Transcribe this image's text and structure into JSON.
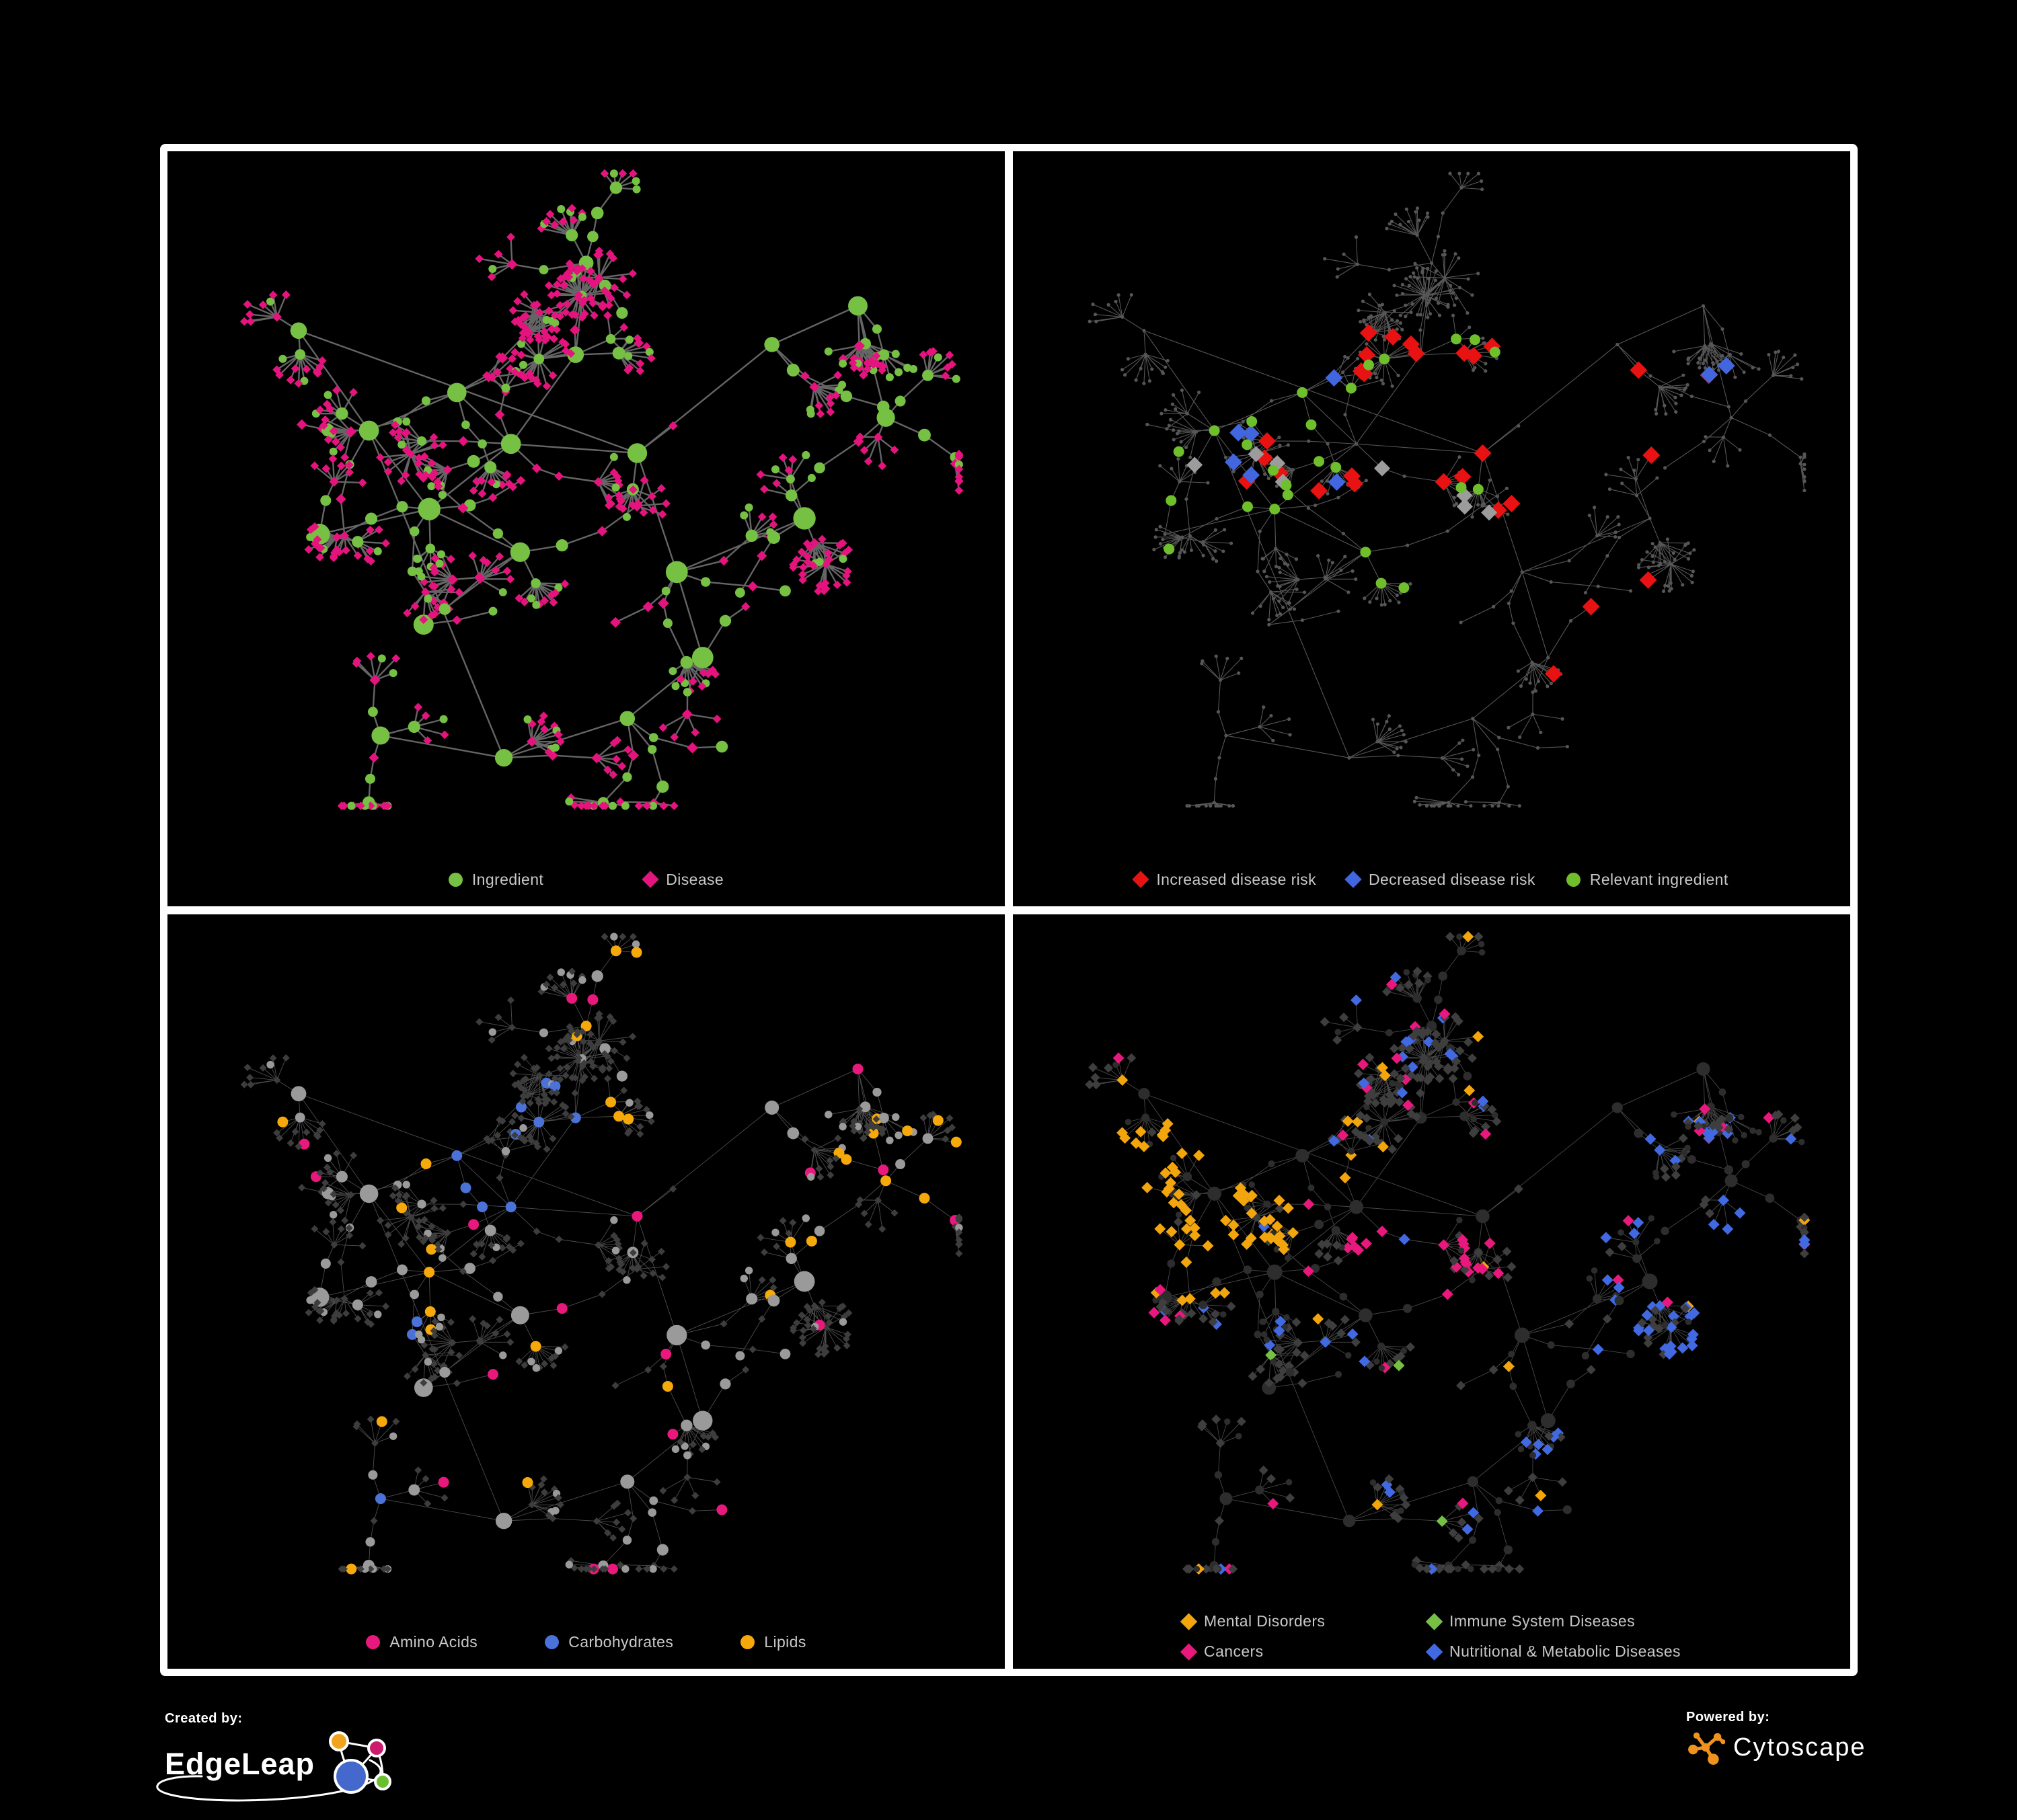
{
  "branding": {
    "created_by_label": "Created by:",
    "created_by_name": "EdgeLeap",
    "powered_by_label": "Powered by:",
    "powered_by_name": "Cytoscape",
    "cytoscape_orange": "#f0921e",
    "logo_colors": {
      "blue": "#4468cb",
      "orange": "#f0a41e",
      "pink": "#cc1a6e",
      "green": "#6abf2e"
    }
  },
  "panels": [
    {
      "name": "ingredient-disease",
      "legend": [
        {
          "label": "Ingredient",
          "shape": "circle",
          "color": "#76c043"
        },
        {
          "label": "Disease",
          "shape": "diamond",
          "color": "#e5137d"
        }
      ]
    },
    {
      "name": "disease-risk",
      "legend": [
        {
          "label": "Increased disease risk",
          "shape": "diamond",
          "color": "#e81212"
        },
        {
          "label": "Decreased disease risk",
          "shape": "diamond",
          "color": "#4166e0"
        },
        {
          "label": "Relevant ingredient",
          "shape": "circle",
          "color": "#6fbf2c"
        }
      ]
    },
    {
      "name": "nutrient-classes",
      "legend": [
        {
          "label": "Amino Acids",
          "shape": "circle",
          "color": "#e8187d"
        },
        {
          "label": "Carbohydrates",
          "shape": "circle",
          "color": "#4a72d8"
        },
        {
          "label": "Lipids",
          "shape": "circle",
          "color": "#f6a90b"
        }
      ]
    },
    {
      "name": "disease-categories",
      "legend": [
        {
          "label": "Mental Disorders",
          "shape": "diamond",
          "color": "#f2a50c"
        },
        {
          "label": "Immune System Diseases",
          "shape": "diamond",
          "color": "#76c043"
        },
        {
          "label": "Cancers",
          "shape": "diamond",
          "color": "#e8187d"
        },
        {
          "label": "Nutritional & Metabolic Diseases",
          "shape": "diamond",
          "color": "#4169e1"
        }
      ]
    }
  ],
  "chart_data": {
    "type": "network",
    "note": "One ingredient-disease association network rendered four times with different color mappings; positions procedurally approximated from the figure.",
    "layout": {
      "seed": 11,
      "hubs": [
        [
          0.22,
          0.4
        ],
        [
          0.33,
          0.33
        ],
        [
          0.42,
          0.42
        ],
        [
          0.3,
          0.52
        ],
        [
          0.16,
          0.55
        ],
        [
          0.5,
          0.3
        ],
        [
          0.57,
          0.44
        ],
        [
          0.43,
          0.58
        ],
        [
          0.62,
          0.6
        ],
        [
          0.28,
          0.7
        ],
        [
          0.66,
          0.76
        ],
        [
          0.72,
          0.28
        ],
        [
          0.84,
          0.22
        ],
        [
          0.55,
          0.82
        ],
        [
          0.38,
          0.88
        ],
        [
          0.8,
          0.55
        ],
        [
          0.13,
          0.25
        ],
        [
          0.5,
          0.14
        ],
        [
          0.88,
          0.4
        ],
        [
          0.23,
          0.84
        ]
      ],
      "branches_min": 2,
      "branches_max": 4,
      "dandelions": 6,
      "leaf_circle_p": 0.2
    },
    "panel_styles": [
      {
        "style": "types",
        "edge": {
          "color": "#6e6e6e",
          "width": 2.4,
          "opacity": 0.92
        },
        "circle_color": "#76c043",
        "diamond_color": "#e5137d"
      },
      {
        "style": "base_highlight",
        "seed": 21,
        "edge": {
          "color": "#6f6f6f",
          "width": 1.1,
          "opacity": 0.78
        },
        "base_color": "#565656",
        "base_r": 2.6,
        "highlights": [
          {
            "shape": "diamond",
            "color": "#e81212",
            "half": 13,
            "picks": [
              [
                0.25,
                0.25,
                0.62,
                0.55,
                22
              ],
              [
                0.62,
                0.28,
                0.86,
                0.45,
                3
              ],
              [
                0.55,
                0.6,
                0.78,
                0.8,
                3
              ]
            ]
          },
          {
            "shape": "diamond",
            "color": "#4166e0",
            "half": 13,
            "picks": [
              [
                0.2,
                0.3,
                0.38,
                0.52,
                6
              ],
              [
                0.8,
                0.18,
                0.95,
                0.32,
                2
              ]
            ]
          },
          {
            "shape": "diamond",
            "color": "#9c9c9c",
            "half": 12,
            "picks": [
              [
                0.3,
                0.3,
                0.65,
                0.6,
                6
              ],
              [
                0.18,
                0.42,
                0.3,
                0.62,
                2
              ]
            ]
          },
          {
            "shape": "circle",
            "color": "#6fbf2c",
            "r": 8,
            "picks": [
              [
                0.2,
                0.25,
                0.65,
                0.55,
                20
              ],
              [
                0.08,
                0.28,
                0.2,
                0.7,
                3
              ],
              [
                0.4,
                0.58,
                0.72,
                0.85,
                3
              ]
            ]
          }
        ]
      },
      {
        "style": "nutrients",
        "seed": 33,
        "edge": {
          "color": "#9a9a9a",
          "width": 0.9,
          "opacity": 0.5
        },
        "diamond_color": "#3d3d3d",
        "diamond_half": 5.5,
        "circle_color": "#9a9a9a",
        "colored_r": 8,
        "cluster": {
          "cx": 0.4,
          "cy": 0.3,
          "r": 0.13,
          "orange_p": 0.6,
          "blue_p": 0.25
        },
        "orange": {
          "color": "#f6a90b",
          "p": 0.16
        },
        "pink": {
          "color": "#e8187d",
          "p": 0.11
        },
        "blue": {
          "color": "#4a72d8",
          "p": 0.025
        }
      },
      {
        "style": "categories",
        "seed": 47,
        "edge": {
          "color": "#8f8f8f",
          "width": 0.9,
          "opacity": 0.5
        },
        "diamond_color": "#3e3e3e",
        "diamond_half": 7,
        "circle_color": "#2d2d2d",
        "colored_half": 8.5,
        "orange": {
          "color": "#f2a50c",
          "cx": 0.2,
          "cy": 0.42,
          "r": 0.15,
          "p_in": 0.85,
          "p_out": 0.06
        },
        "pink": {
          "color": "#e8187d",
          "cx": 0.5,
          "cy": 0.47,
          "r": 0.12,
          "p_in": 0.5,
          "p_out": 0.06
        },
        "blue": {
          "color": "#4169e1",
          "x_min": 0.62,
          "p_in": 0.3,
          "p_out": 0.09
        },
        "green": {
          "color": "#76c043",
          "p": 0.018
        }
      }
    ]
  }
}
